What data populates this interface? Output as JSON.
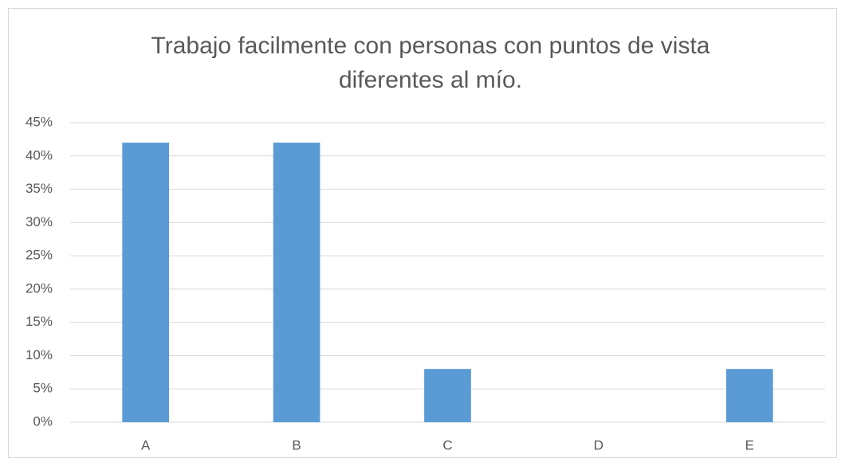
{
  "chart_data": {
    "type": "bar",
    "title": "Trabajo facilmente con personas con puntos de vista diferentes al mío.",
    "categories": [
      "A",
      "B",
      "C",
      "D",
      "E"
    ],
    "values": [
      42,
      42,
      8,
      0,
      8
    ],
    "color": "#5b9bd5",
    "ylim": [
      0,
      45
    ],
    "yticks": [
      {
        "value": 0,
        "label": "0%"
      },
      {
        "value": 5,
        "label": "5%"
      },
      {
        "value": 10,
        "label": "10%"
      },
      {
        "value": 15,
        "label": "15%"
      },
      {
        "value": 20,
        "label": "20%"
      },
      {
        "value": 25,
        "label": "25%"
      },
      {
        "value": 30,
        "label": "30%"
      },
      {
        "value": 35,
        "label": "35%"
      },
      {
        "value": 40,
        "label": "40%"
      },
      {
        "value": 45,
        "label": "45%"
      }
    ],
    "grid": true
  }
}
